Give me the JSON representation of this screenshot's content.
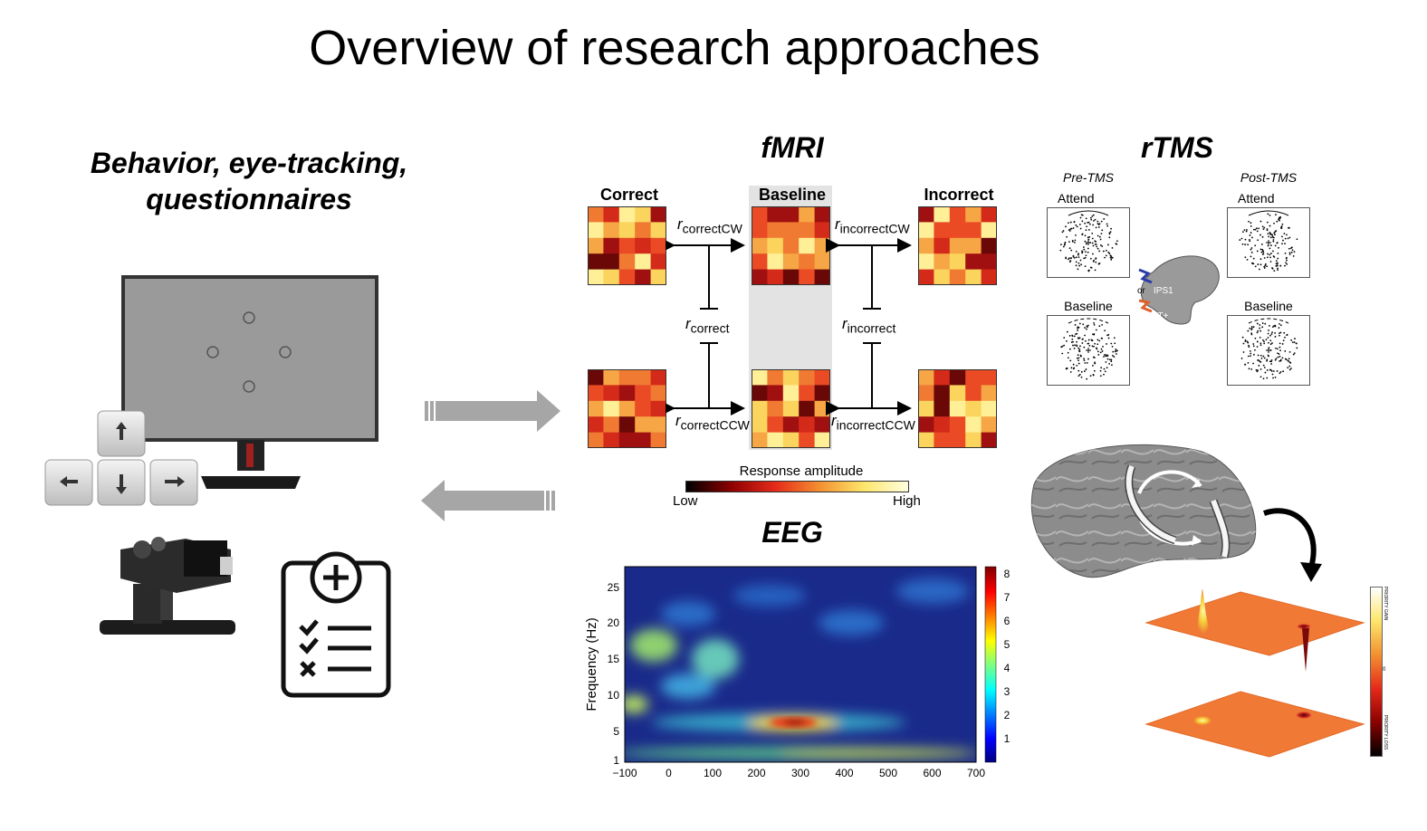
{
  "title": "Overview of research approaches",
  "behavior": {
    "title_line1": "Behavior, eye-tracking,",
    "title_line2": "questionnaires"
  },
  "fmri": {
    "title": "fMRI",
    "labels": {
      "correct": "Correct",
      "baseline": "Baseline",
      "incorrect": "Incorrect"
    },
    "relations": {
      "correct_cw": {
        "r": "r",
        "sub": "correctCW"
      },
      "incorrect_cw": {
        "r": "r",
        "sub": "incorrectCW"
      },
      "correct": {
        "r": "r",
        "sub": "correct"
      },
      "incorrect": {
        "r": "r",
        "sub": "incorrect"
      },
      "correct_ccw": {
        "r": "r",
        "sub": "correctCCW"
      },
      "incorrect_ccw": {
        "r": "r",
        "sub": "incorrectCCW"
      }
    },
    "colorbar": {
      "title": "Response amplitude",
      "low": "Low",
      "high": "High"
    }
  },
  "rtms": {
    "title": "rTMS",
    "pre": "Pre-TMS",
    "post": "Post-TMS",
    "attend": "Attend",
    "baseline": "Baseline",
    "or": "or",
    "ips": "IPS1",
    "mt": "MT+",
    "gain_label": "PRIORITY GAIN",
    "loss_label": "PRIORITY LOSS",
    "zero_label": "0"
  },
  "eeg": {
    "title": "EEG",
    "ylabel": "Frequency (Hz)",
    "y_ticks": [
      "25",
      "20",
      "15",
      "10",
      "5",
      "1"
    ],
    "x_ticks": [
      "−100",
      "0",
      "100",
      "200",
      "300",
      "400",
      "500",
      "600",
      "700"
    ],
    "colorbar_ticks": [
      "8",
      "7",
      "6",
      "5",
      "4",
      "3",
      "2",
      "1"
    ]
  },
  "colors": {
    "arrow_gray": "#a6a6a6",
    "monitor_screen": "#8a8a8a",
    "brain_gray": "#8c8c8c",
    "surface_orange": "#f07a35"
  }
}
